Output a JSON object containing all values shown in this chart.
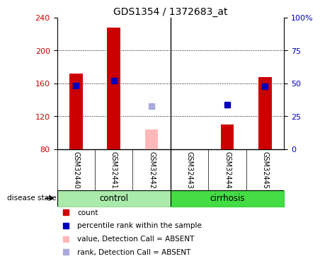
{
  "title": "GDS1354 / 1372683_at",
  "samples": [
    "GSM32440",
    "GSM32441",
    "GSM32442",
    "GSM32443",
    "GSM32444",
    "GSM32445"
  ],
  "ylim_left": [
    80,
    240
  ],
  "ylim_right": [
    0,
    100
  ],
  "yticks_left": [
    80,
    120,
    160,
    200,
    240
  ],
  "yticks_right": [
    0,
    25,
    50,
    75,
    100
  ],
  "yticklabels_right": [
    "0",
    "25",
    "50",
    "75",
    "100%"
  ],
  "red_bars": [
    172,
    228,
    null,
    null,
    110,
    168
  ],
  "pink_bars": [
    null,
    null,
    104,
    null,
    null,
    null
  ],
  "blue_squares": [
    157,
    163,
    null,
    null,
    134,
    156
  ],
  "lightblue_squares": [
    null,
    null,
    132,
    null,
    null,
    null
  ],
  "bar_width": 0.35,
  "bar_color_red": "#cc0000",
  "bar_color_pink": "#ffb8b8",
  "square_color_blue": "#0000bb",
  "square_color_lightblue": "#aaaadd",
  "control_color": "#aaeaaa",
  "cirrhosis_color": "#44dd44",
  "sample_label_bg": "#cccccc",
  "bg_color": "#ffffff",
  "legend_items": [
    {
      "label": "count",
      "color": "#cc0000"
    },
    {
      "label": "percentile rank within the sample",
      "color": "#0000bb"
    },
    {
      "label": "value, Detection Call = ABSENT",
      "color": "#ffb8b8"
    },
    {
      "label": "rank, Detection Call = ABSENT",
      "color": "#aaaadd"
    }
  ]
}
